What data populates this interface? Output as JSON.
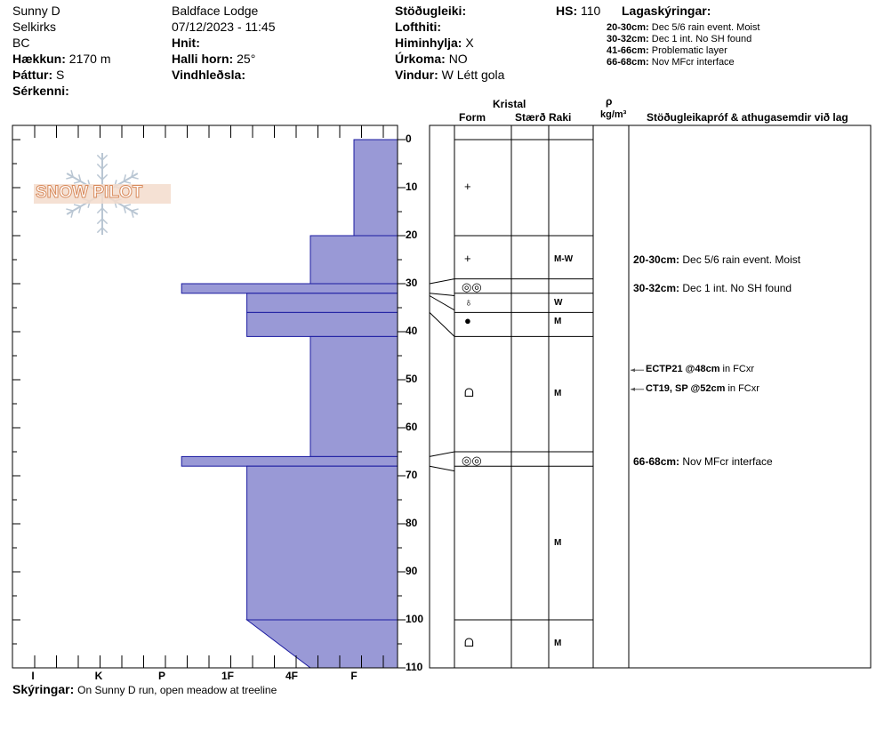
{
  "header": {
    "location": "Sunny D",
    "range": "Selkirks",
    "province": "BC",
    "elevation_label": "Hækkun:",
    "elevation_value": "2170 m",
    "aspect_label": "Þáttur:",
    "aspect_value": "S",
    "features_label": "Sérkenni:",
    "operation": "Baldface Lodge",
    "datetime": "07/12/2023 - 11:45",
    "coords_label": "Hnit:",
    "slope_label": "Halli horn:",
    "slope_value": "25°",
    "wind_loading_label": "Vindhleðsla:",
    "stability_label": "Stöðugleiki:",
    "air_temp_label": "Lofthiti:",
    "sky_label": "Himinhylja:",
    "sky_value": "X",
    "precip_label": "Úrkoma:",
    "precip_value": "NO",
    "wind_label": "Vindur:",
    "wind_value": "W Létt gola",
    "hs_label": "HS:",
    "hs_value": "110",
    "layers_title": "Lagaskýringar:"
  },
  "layer_notes": [
    {
      "range": "20-30cm:",
      "text": "Dec 5/6 rain event. Moist"
    },
    {
      "range": "30-32cm:",
      "text": "Dec 1 int. No SH found"
    },
    {
      "range": "41-66cm:",
      "text": "Problematic layer"
    },
    {
      "range": "66-68cm:",
      "text": "Nov MFcr interface"
    }
  ],
  "columns": {
    "kristal": "Kristal",
    "form": "Form",
    "size": "Stærð",
    "moisture": "Raki",
    "rho": "ρ",
    "density_unit": "kg/m³",
    "tests": "Stöðugleikapróf & athugasemdir við lag"
  },
  "logo_text": "SNOW PILOT",
  "footer": {
    "label": "Skýringar:",
    "text": "On Sunny D run, open meadow at treeline"
  },
  "chart_data": {
    "type": "bar",
    "title": "",
    "orientation": "horizontal",
    "ylabel": "",
    "ylim": [
      0,
      110
    ],
    "y_ticks": [
      0,
      10,
      20,
      30,
      40,
      50,
      60,
      70,
      80,
      90,
      100,
      110
    ],
    "hardness_scale": [
      "I",
      "K",
      "P",
      "1F",
      "4F",
      "F"
    ],
    "hardness_scale_values": [
      6,
      5,
      4,
      3,
      2,
      1
    ],
    "layers": [
      {
        "top": 0,
        "bottom": 20,
        "hardness": 1
      },
      {
        "top": 20,
        "bottom": 30,
        "hardness": 1.7
      },
      {
        "top": 30,
        "bottom": 32,
        "hardness": 3.7
      },
      {
        "top": 32,
        "bottom": 36,
        "hardness": 2.7
      },
      {
        "top": 36,
        "bottom": 41,
        "hardness": 2.7
      },
      {
        "top": 41,
        "bottom": 66,
        "hardness": 1.7
      },
      {
        "top": 66,
        "bottom": 68,
        "hardness": 3.7
      },
      {
        "top": 68,
        "bottom": 100,
        "hardness": 2.7
      },
      {
        "top": 100,
        "bottom": 110,
        "hardness_top": 2.7,
        "hardness_bottom": 1.7
      }
    ],
    "layer_lines": [
      0,
      20,
      29,
      32,
      36,
      41,
      65,
      68,
      100,
      110
    ],
    "grain_forms": [
      {
        "depth": 10,
        "symbol": "+"
      },
      {
        "depth": 25,
        "symbol": "+"
      },
      {
        "depth": 31,
        "symbol": "◎◎"
      },
      {
        "depth": 34,
        "symbol": "♁"
      },
      {
        "depth": 38,
        "symbol": "●"
      },
      {
        "depth": 53,
        "symbol": "ᗝ"
      },
      {
        "depth": 67,
        "symbol": "◎◎"
      },
      {
        "depth": 105,
        "symbol": "ᗝ"
      }
    ],
    "moisture": [
      {
        "depth": 25,
        "value": "M-W"
      },
      {
        "depth": 34,
        "value": "W"
      },
      {
        "depth": 38,
        "value": "M"
      },
      {
        "depth": 53,
        "value": "M"
      },
      {
        "depth": 84,
        "value": "M"
      },
      {
        "depth": 105,
        "value": "M"
      }
    ],
    "layer_comments": [
      {
        "depth": 25,
        "range": "20-30cm:",
        "text": "Dec 5/6 rain event. Moist"
      },
      {
        "depth": 31,
        "range": "30-32cm:",
        "text": "Dec 1 int. No SH found"
      },
      {
        "depth": 67,
        "range": "66-68cm:",
        "text": "Nov MFcr interface"
      }
    ],
    "stability_tests": [
      {
        "depth": 48,
        "result": "ECTP21 @48cm",
        "note": "in FCxr"
      },
      {
        "depth": 52,
        "result": "CT19, SP @52cm",
        "note": "in FCxr"
      }
    ]
  }
}
